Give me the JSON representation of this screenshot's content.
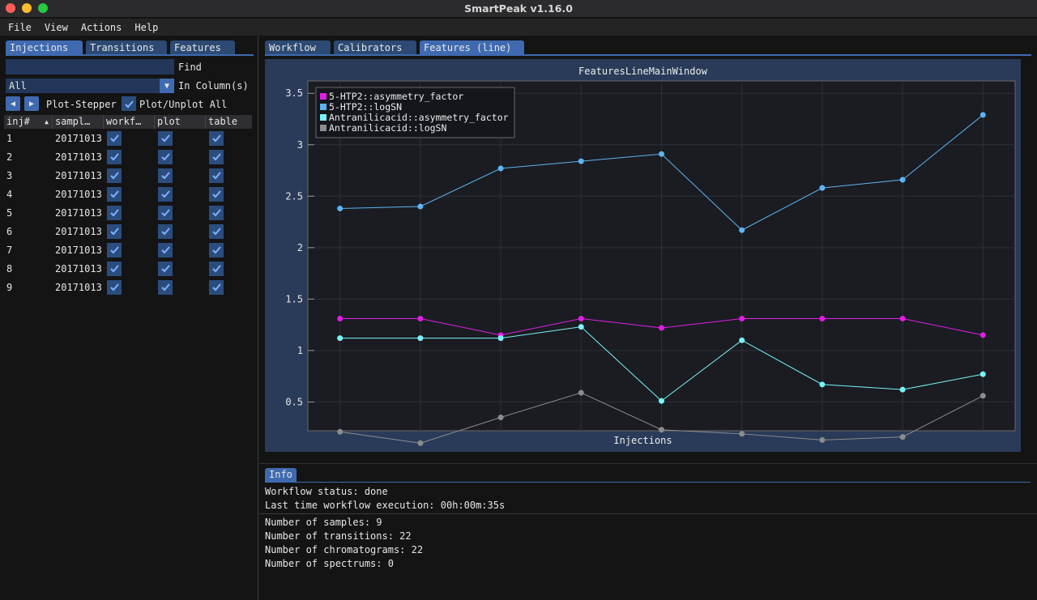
{
  "window": {
    "title": "SmartPeak v1.16.0"
  },
  "menu": [
    "File",
    "View",
    "Actions",
    "Help"
  ],
  "left": {
    "tabs": [
      "Injections",
      "Transitions",
      "Features"
    ],
    "find_label": "Find",
    "column_filter": "All",
    "in_columns_label": "In Column(s)",
    "plot_stepper_label": "Plot-Stepper",
    "plot_all_label": "Plot/Unplot All",
    "table": {
      "columns": [
        "inj#",
        "sampl…",
        "workf…",
        "plot",
        "table"
      ],
      "rows": [
        {
          "inj": "1",
          "sample": "20171013",
          "workflow": true,
          "plot": true,
          "table": true
        },
        {
          "inj": "2",
          "sample": "20171013",
          "workflow": true,
          "plot": true,
          "table": true
        },
        {
          "inj": "3",
          "sample": "20171013",
          "workflow": true,
          "plot": true,
          "table": true
        },
        {
          "inj": "4",
          "sample": "20171013",
          "workflow": true,
          "plot": true,
          "table": true
        },
        {
          "inj": "5",
          "sample": "20171013",
          "workflow": true,
          "plot": true,
          "table": true
        },
        {
          "inj": "6",
          "sample": "20171013",
          "workflow": true,
          "plot": true,
          "table": true
        },
        {
          "inj": "7",
          "sample": "20171013",
          "workflow": true,
          "plot": true,
          "table": true
        },
        {
          "inj": "8",
          "sample": "20171013",
          "workflow": true,
          "plot": true,
          "table": true
        },
        {
          "inj": "9",
          "sample": "20171013",
          "workflow": true,
          "plot": true,
          "table": true
        }
      ]
    }
  },
  "right": {
    "tabs": [
      "Workflow",
      "Calibrators",
      "Features (line)"
    ],
    "active_tab": 2
  },
  "chart_data": {
    "type": "line",
    "title": "FeaturesLineMainWindow",
    "xlabel": "Injections",
    "ylabel": "",
    "x": [
      1,
      2,
      3,
      4,
      5,
      6,
      7,
      8,
      9
    ],
    "ylim": [
      0.22,
      3.62
    ],
    "yticks": [
      0.5,
      1,
      1.5,
      2,
      2.5,
      3,
      3.5
    ],
    "grid": true,
    "legend_position": "top-left",
    "series": [
      {
        "name": "5-HTP2::asymmetry_factor",
        "color": "#e11ee3",
        "values": [
          1.31,
          1.31,
          1.15,
          1.31,
          1.22,
          1.31,
          1.31,
          1.31,
          1.15
        ]
      },
      {
        "name": "5-HTP2::logSN",
        "color": "#5cb4f0",
        "values": [
          2.38,
          2.4,
          2.77,
          2.84,
          2.91,
          2.17,
          2.58,
          2.66,
          3.29
        ]
      },
      {
        "name": "Antranilicacid::asymmetry_factor",
        "color": "#79f3f6",
        "values": [
          1.12,
          1.12,
          1.12,
          1.23,
          0.51,
          1.1,
          0.67,
          0.62,
          0.77
        ]
      },
      {
        "name": "Antranilicacid::logSN",
        "color": "#8c8c8c",
        "values": [
          0.21,
          0.1,
          0.35,
          0.59,
          0.23,
          0.19,
          0.13,
          0.16,
          0.56
        ]
      }
    ]
  },
  "info": {
    "tab": "Info",
    "lines": [
      "Workflow status: done",
      "Last time workflow execution: 00h:00m:35s",
      "Number of samples: 9",
      "Number of transitions: 22",
      "Number of chromatograms: 22",
      "Number of spectrums: 0"
    ]
  }
}
